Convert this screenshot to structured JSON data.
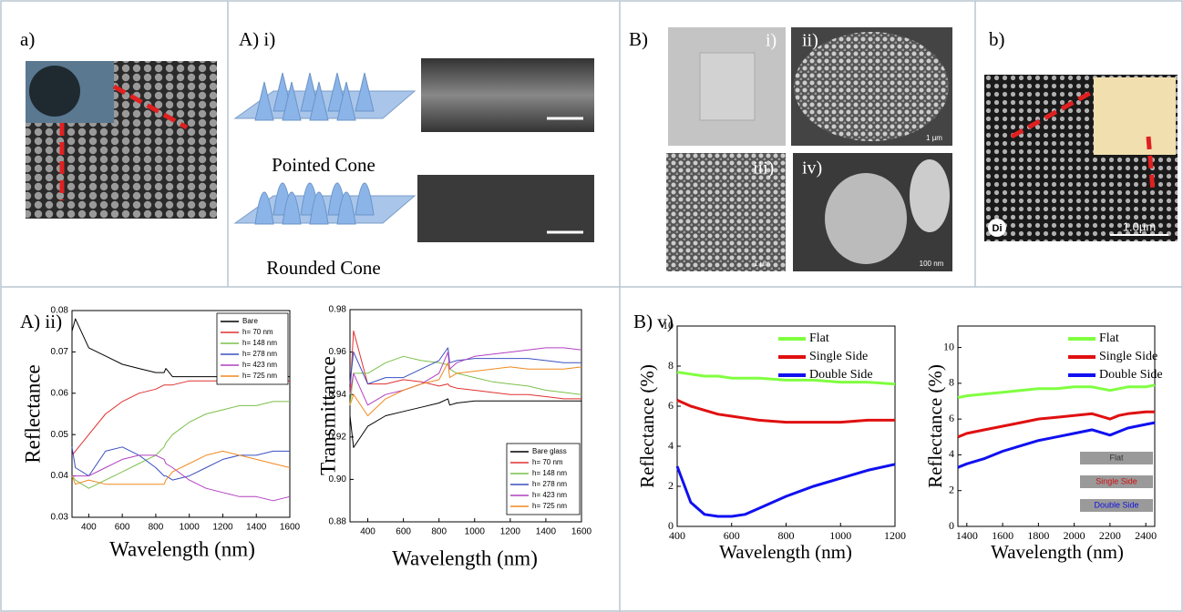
{
  "panel_labels": [
    "a)",
    "A) i)",
    "B)",
    "b)",
    "A) ii)",
    "B) v)"
  ],
  "image_text": {
    "cones": [
      "Pointed Cone",
      "Rounded Cone"
    ],
    "sem_labels": [
      "i)",
      "ii)",
      "iii)",
      "iv)"
    ],
    "scale_bars": [
      "1 µm",
      "1 µm",
      "100 nm",
      "1.0µm"
    ],
    "marker": "Di"
  },
  "chart_data": [
    {
      "type": "line",
      "xlabel": "Wavelength (nm)",
      "ylabel": "Reflectance",
      "legend": "upper right",
      "x": [
        300,
        320,
        400,
        500,
        600,
        700,
        800,
        850,
        860,
        900,
        1000,
        1100,
        1200,
        1300,
        1400,
        1500,
        1600
      ],
      "xlim": [
        300,
        1600
      ],
      "xticks": [
        400,
        600,
        800,
        1000,
        1200,
        1400,
        1600
      ],
      "ylim": [
        0.03,
        0.08
      ],
      "yticks": [
        0.03,
        0.04,
        0.05,
        0.06,
        0.07,
        0.08
      ],
      "series": [
        {
          "name": "Bare",
          "color": "#000000",
          "values": [
            0.075,
            0.078,
            0.071,
            0.069,
            0.067,
            0.066,
            0.065,
            0.065,
            0.066,
            0.064,
            0.064,
            0.064,
            0.064,
            0.064,
            0.064,
            0.064,
            0.064
          ]
        },
        {
          "name": "h= 70 nm",
          "color": "#e03030",
          "values": [
            0.045,
            0.046,
            0.05,
            0.055,
            0.058,
            0.06,
            0.061,
            0.062,
            0.062,
            0.062,
            0.063,
            0.063,
            0.063,
            0.063,
            0.063,
            0.063,
            0.063
          ]
        },
        {
          "name": "h= 148 nm",
          "color": "#7cc04a",
          "values": [
            0.04,
            0.039,
            0.037,
            0.039,
            0.041,
            0.043,
            0.045,
            0.047,
            0.048,
            0.05,
            0.053,
            0.055,
            0.056,
            0.057,
            0.057,
            0.058,
            0.058
          ]
        },
        {
          "name": "h= 278 nm",
          "color": "#3a50c0",
          "values": [
            0.047,
            0.042,
            0.04,
            0.046,
            0.047,
            0.045,
            0.042,
            0.04,
            0.04,
            0.039,
            0.04,
            0.042,
            0.044,
            0.045,
            0.045,
            0.046,
            0.046
          ]
        },
        {
          "name": "h= 423 nm",
          "color": "#b040c0",
          "values": [
            0.04,
            0.04,
            0.04,
            0.042,
            0.044,
            0.045,
            0.045,
            0.044,
            0.043,
            0.042,
            0.039,
            0.037,
            0.036,
            0.035,
            0.035,
            0.034,
            0.035
          ]
        },
        {
          "name": "h= 725 nm",
          "color": "#f08a20",
          "values": [
            0.04,
            0.038,
            0.039,
            0.038,
            0.038,
            0.038,
            0.038,
            0.038,
            0.039,
            0.041,
            0.043,
            0.045,
            0.046,
            0.045,
            0.044,
            0.043,
            0.042
          ]
        }
      ]
    },
    {
      "type": "line",
      "xlabel": "Wavelength (nm)",
      "ylabel": "Transmittance",
      "legend": "lower right",
      "x": [
        300,
        320,
        400,
        500,
        600,
        700,
        800,
        850,
        860,
        900,
        1000,
        1100,
        1200,
        1300,
        1400,
        1500,
        1600
      ],
      "xlim": [
        300,
        1600
      ],
      "xticks": [
        400,
        600,
        800,
        1000,
        1200,
        1400,
        1600
      ],
      "ylim": [
        0.88,
        0.98
      ],
      "yticks": [
        0.88,
        {
          "value": 0.9,
          "label": "0.90"
        },
        0.92,
        0.94,
        0.96,
        0.98
      ],
      "series": [
        {
          "name": "Bare glass",
          "color": "#000000",
          "values": [
            0.93,
            0.915,
            0.925,
            0.93,
            0.932,
            0.934,
            0.936,
            0.938,
            0.935,
            0.936,
            0.937,
            0.937,
            0.937,
            0.937,
            0.937,
            0.937,
            0.937
          ]
        },
        {
          "name": "h= 70 nm",
          "color": "#e03030",
          "values": [
            0.94,
            0.97,
            0.945,
            0.945,
            0.947,
            0.946,
            0.944,
            0.945,
            0.944,
            0.943,
            0.942,
            0.941,
            0.94,
            0.94,
            0.939,
            0.938,
            0.938
          ]
        },
        {
          "name": "h= 148 nm",
          "color": "#7cc04a",
          "values": [
            0.935,
            0.95,
            0.95,
            0.955,
            0.958,
            0.956,
            0.955,
            0.954,
            0.952,
            0.95,
            0.948,
            0.946,
            0.945,
            0.944,
            0.942,
            0.941,
            0.94
          ]
        },
        {
          "name": "h= 278 nm",
          "color": "#3a50c0",
          "values": [
            0.945,
            0.96,
            0.945,
            0.948,
            0.948,
            0.952,
            0.956,
            0.962,
            0.955,
            0.956,
            0.957,
            0.957,
            0.957,
            0.957,
            0.956,
            0.955,
            0.955
          ]
        },
        {
          "name": "h= 423 nm",
          "color": "#b040c0",
          "values": [
            0.94,
            0.95,
            0.935,
            0.94,
            0.942,
            0.945,
            0.95,
            0.96,
            0.952,
            0.955,
            0.958,
            0.959,
            0.96,
            0.961,
            0.962,
            0.962,
            0.961
          ]
        },
        {
          "name": "h= 725 nm",
          "color": "#f08a20",
          "values": [
            0.935,
            0.94,
            0.93,
            0.938,
            0.942,
            0.945,
            0.947,
            0.955,
            0.948,
            0.95,
            0.951,
            0.952,
            0.953,
            0.952,
            0.952,
            0.952,
            0.953
          ]
        }
      ]
    },
    {
      "type": "line",
      "xlabel": "Wavelength (nm)",
      "ylabel": "Reflectance (%)",
      "legend": "upper right",
      "x": [
        400,
        450,
        500,
        550,
        600,
        650,
        700,
        800,
        900,
        1000,
        1100,
        1200
      ],
      "xlim": [
        400,
        1200
      ],
      "xticks": [
        400,
        600,
        800,
        1000,
        1200
      ],
      "ylim": [
        0,
        10
      ],
      "yticks": [
        0,
        2,
        4,
        6,
        8,
        10
      ],
      "series": [
        {
          "name": "Flat",
          "color": "#80ff40",
          "values": [
            7.7,
            7.6,
            7.5,
            7.5,
            7.4,
            7.4,
            7.4,
            7.3,
            7.3,
            7.2,
            7.2,
            7.1
          ]
        },
        {
          "name": "Single Side",
          "color": "#e01010",
          "values": [
            6.3,
            6.0,
            5.8,
            5.6,
            5.5,
            5.4,
            5.3,
            5.2,
            5.2,
            5.2,
            5.3,
            5.3
          ]
        },
        {
          "name": "Double Side",
          "color": "#1010f0",
          "values": [
            3.0,
            1.2,
            0.6,
            0.5,
            0.5,
            0.6,
            0.9,
            1.5,
            2.0,
            2.4,
            2.8,
            3.1
          ]
        }
      ]
    },
    {
      "type": "line",
      "xlabel": "Wavelength (nm)",
      "ylabel": "Reflectance (%)",
      "legend": "upper right",
      "inset_labels": [
        "Flat",
        "Single Side",
        "Double Side"
      ],
      "x": [
        1350,
        1400,
        1500,
        1600,
        1700,
        1800,
        1900,
        2000,
        2100,
        2200,
        2250,
        2300,
        2400,
        2450
      ],
      "xlim": [
        1350,
        2450
      ],
      "xticks": [
        1400,
        1600,
        1800,
        2000,
        2200,
        2400
      ],
      "ylim": [
        0,
        11.2
      ],
      "yticks": [
        0,
        2,
        4,
        6,
        8,
        10
      ],
      "series": [
        {
          "name": "Flat",
          "color": "#80ff40",
          "values": [
            7.2,
            7.3,
            7.4,
            7.5,
            7.6,
            7.7,
            7.7,
            7.8,
            7.8,
            7.6,
            7.7,
            7.8,
            7.8,
            7.9
          ]
        },
        {
          "name": "Single Side",
          "color": "#e01010",
          "values": [
            5.0,
            5.2,
            5.4,
            5.6,
            5.8,
            6.0,
            6.1,
            6.2,
            6.3,
            6.0,
            6.2,
            6.3,
            6.4,
            6.4
          ]
        },
        {
          "name": "Double Side",
          "color": "#1010f0",
          "values": [
            3.3,
            3.5,
            3.8,
            4.2,
            4.5,
            4.8,
            5.0,
            5.2,
            5.4,
            5.1,
            5.3,
            5.5,
            5.7,
            5.8
          ]
        }
      ]
    }
  ]
}
